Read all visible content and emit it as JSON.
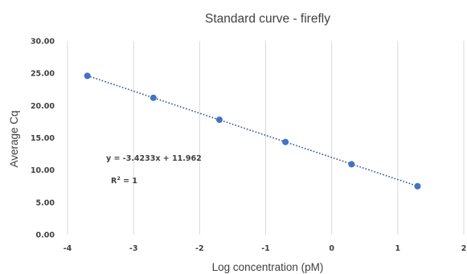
{
  "chart_data": {
    "type": "scatter",
    "title": "Standard curve - firefly",
    "xlabel": "Log concentration (pM)",
    "ylabel": "Average Cq",
    "xlim": [
      -4,
      2
    ],
    "ylim": [
      0,
      30
    ],
    "xticks": [
      -4,
      -3,
      -2,
      -1,
      0,
      1,
      2
    ],
    "yticks": [
      0,
      5,
      10,
      15,
      20,
      25,
      30
    ],
    "x_tick_labels": [
      "-4",
      "-3",
      "-2",
      "-1",
      "0",
      "1",
      "2"
    ],
    "y_tick_labels": [
      "0.00",
      "5.00",
      "10.00",
      "15.00",
      "20.00",
      "25.00",
      "30.00"
    ],
    "grid": {
      "vertical": true,
      "horizontal": false
    },
    "legend": "none",
    "series": [
      {
        "x": [
          -3.7,
          -2.7,
          -1.7,
          -0.7,
          0.3,
          1.3
        ],
        "y": [
          24.6,
          21.2,
          17.8,
          14.35,
          10.9,
          7.5
        ],
        "color": "#4472c4"
      }
    ],
    "trendline": {
      "type": "linear",
      "slope": -3.4233,
      "intercept": 11.962,
      "color": "#2f5597",
      "style": "dotted",
      "x_range": [
        -3.7,
        1.3
      ]
    },
    "annotations": {
      "equation": "y = -3.4233x + 11.962",
      "r_squared_label": "R",
      "r_squared_exponent": "2",
      "r_squared_value": " = 1"
    }
  }
}
